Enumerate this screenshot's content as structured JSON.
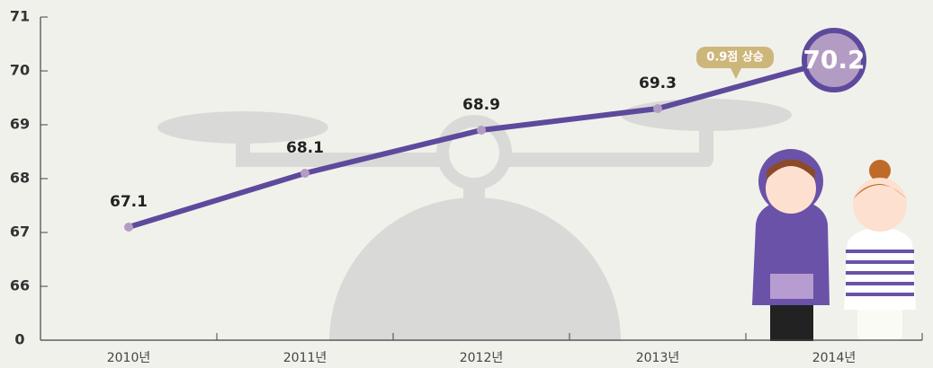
{
  "chart_data": {
    "type": "line",
    "categories": [
      "2010년",
      "2011년",
      "2012년",
      "2013년",
      "2014년"
    ],
    "series": [
      {
        "color": "#5e4a9c",
        "marker_color": "#b39cc4",
        "values": [
          67.1,
          68.1,
          68.9,
          69.3,
          70.2
        ]
      }
    ],
    "ylim": [
      0,
      71
    ],
    "yticks": [
      0,
      66,
      67,
      68,
      69,
      70,
      71
    ],
    "axis_break": true,
    "annotation": "0.9점 상승"
  }
}
